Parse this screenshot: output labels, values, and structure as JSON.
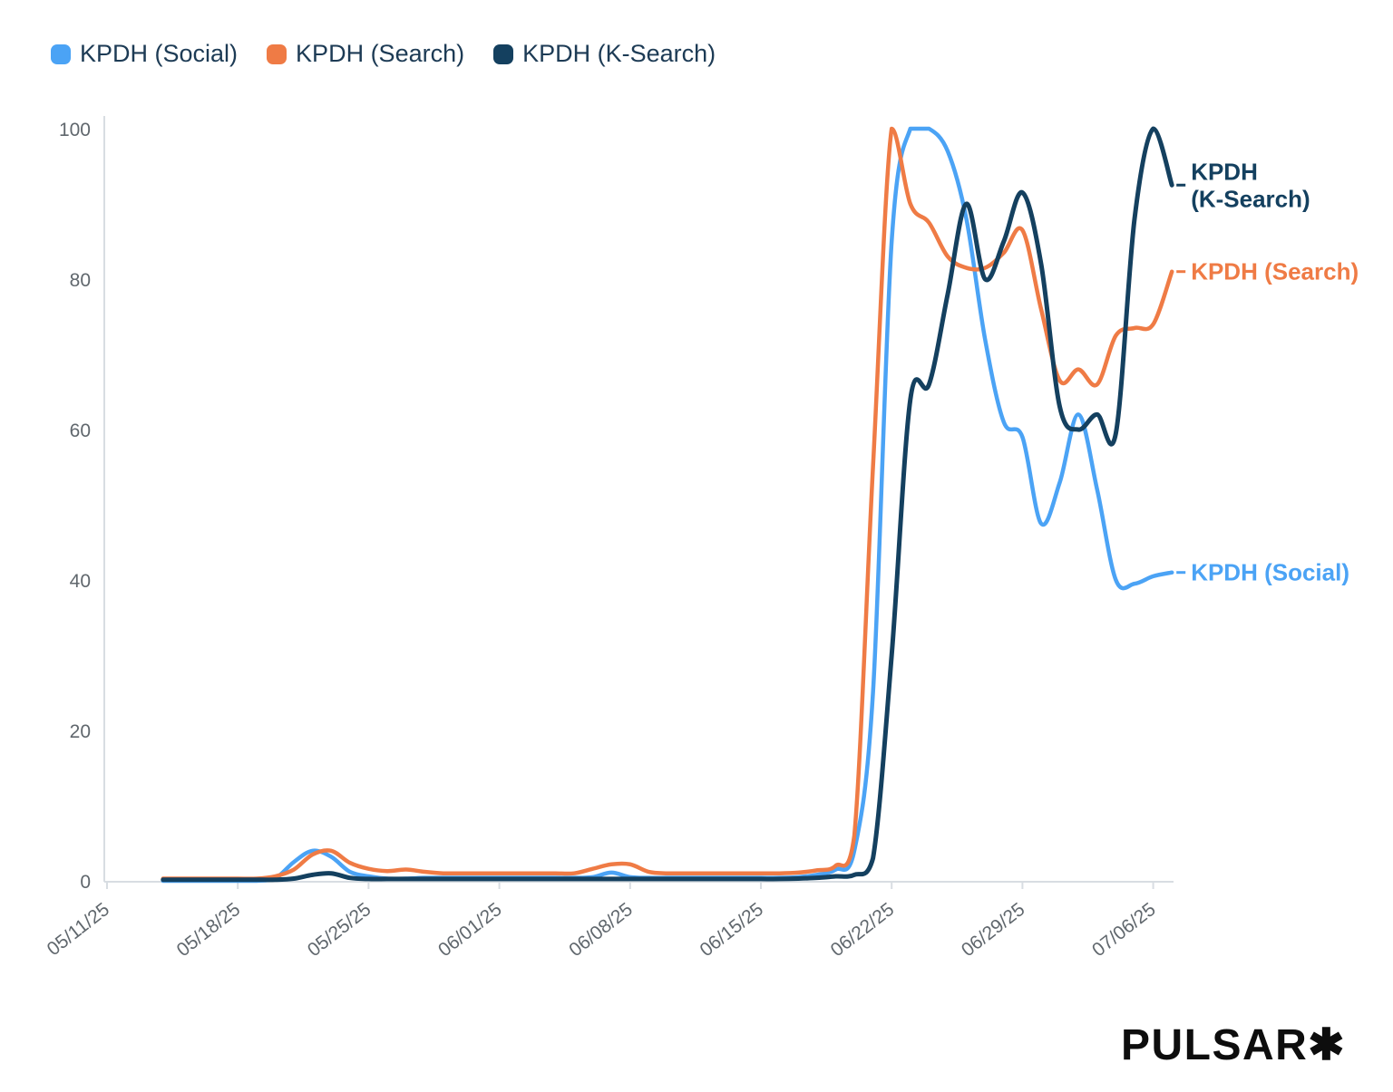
{
  "colors": {
    "social": "#4BA3F5",
    "search": "#EF7B45",
    "ksearch": "#14405F",
    "legend_text": "#1d3b55",
    "axis": "#d8dde2",
    "tick_text": "#60676d"
  },
  "legend": [
    {
      "label": "KPDH (Social)",
      "color": "#4BA3F5"
    },
    {
      "label": "KPDH (Search)",
      "color": "#EF7B45"
    },
    {
      "label": "KPDH (K-Search)",
      "color": "#14405F"
    }
  ],
  "logo": {
    "text": "PULSAR✱"
  },
  "chart_data": {
    "type": "line",
    "title": "",
    "xlabel": "",
    "ylabel": "",
    "ylim": [
      0,
      100
    ],
    "grid": false,
    "legend_position": "top-left",
    "y_ticks": [
      0,
      20,
      40,
      60,
      80,
      100
    ],
    "x_tick_labels": [
      "05/11/25",
      "05/18/25",
      "05/25/25",
      "06/01/25",
      "06/08/25",
      "06/15/25",
      "06/22/25",
      "06/29/25",
      "07/06/25"
    ],
    "x_tick_day_offsets": [
      0,
      7,
      14,
      21,
      28,
      35,
      42,
      49,
      56
    ],
    "start_day_offset": 3,
    "dates": [
      "05/14/25",
      "05/15/25",
      "05/16/25",
      "05/17/25",
      "05/18/25",
      "05/19/25",
      "05/20/25",
      "05/21/25",
      "05/22/25",
      "05/23/25",
      "05/24/25",
      "05/25/25",
      "05/26/25",
      "05/27/25",
      "05/28/25",
      "05/29/25",
      "05/30/25",
      "05/31/25",
      "06/01/25",
      "06/02/25",
      "06/03/25",
      "06/04/25",
      "06/05/25",
      "06/06/25",
      "06/07/25",
      "06/08/25",
      "06/09/25",
      "06/10/25",
      "06/11/25",
      "06/12/25",
      "06/13/25",
      "06/14/25",
      "06/15/25",
      "06/16/25",
      "06/17/25",
      "06/18/25",
      "06/19/25",
      "06/20/25",
      "06/21/25",
      "06/22/25",
      "06/23/25",
      "06/24/25",
      "06/25/25",
      "06/26/25",
      "06/27/25",
      "06/28/25",
      "06/29/25",
      "06/30/25",
      "07/01/25",
      "07/02/25",
      "07/03/25",
      "07/04/25",
      "07/05/25",
      "07/06/25",
      "07/07/25"
    ],
    "series": [
      {
        "name": "KPDH (Social)",
        "color": "#4BA3F5",
        "width": 4.5,
        "end_label": [
          "KPDH (Social)"
        ],
        "values": [
          0,
          0,
          0,
          0,
          0,
          0,
          0.3,
          2.5,
          4,
          3.2,
          1.2,
          0.6,
          0.3,
          0.3,
          0.4,
          0.4,
          0.4,
          0.4,
          0.4,
          0.4,
          0.4,
          0.4,
          0.4,
          0.5,
          1.1,
          0.5,
          0.4,
          0.4,
          0.4,
          0.4,
          0.4,
          0.4,
          0.4,
          0.4,
          0.5,
          0.8,
          1.5,
          4,
          25,
          85,
          100,
          100,
          97,
          88,
          72,
          61,
          59,
          47.5,
          53,
          62,
          52,
          40,
          39.5,
          40.5,
          41
        ]
      },
      {
        "name": "KPDH (Search)",
        "color": "#EF7B45",
        "width": 4.5,
        "end_label": [
          "KPDH (Search)"
        ],
        "values": [
          0.3,
          0.3,
          0.3,
          0.3,
          0.3,
          0.3,
          0.6,
          1.5,
          3.5,
          4,
          2.4,
          1.6,
          1.3,
          1.5,
          1.2,
          1,
          1,
          1,
          1,
          1,
          1,
          1,
          1,
          1.6,
          2.2,
          2.2,
          1.2,
          1,
          1,
          1,
          1,
          1,
          1,
          1,
          1.1,
          1.4,
          2,
          6,
          55,
          100,
          90,
          87.5,
          83,
          81.5,
          81.5,
          83.5,
          86.5,
          76,
          66.5,
          68,
          66,
          72.5,
          73.5,
          74,
          81
        ]
      },
      {
        "name": "KPDH (K-Search)",
        "color": "#14405F",
        "width": 5,
        "end_label": [
          "KPDH",
          "(K-Search)"
        ],
        "values": [
          0.15,
          0.15,
          0.15,
          0.15,
          0.15,
          0.15,
          0.15,
          0.3,
          0.8,
          1,
          0.4,
          0.25,
          0.25,
          0.25,
          0.25,
          0.25,
          0.25,
          0.25,
          0.25,
          0.25,
          0.25,
          0.25,
          0.25,
          0.25,
          0.25,
          0.25,
          0.25,
          0.25,
          0.25,
          0.25,
          0.25,
          0.25,
          0.25,
          0.25,
          0.3,
          0.4,
          0.6,
          0.8,
          3,
          30,
          64,
          66,
          78,
          90,
          80,
          85,
          91.5,
          82,
          63,
          60,
          62,
          59.5,
          88,
          100,
          92.5
        ]
      }
    ]
  }
}
